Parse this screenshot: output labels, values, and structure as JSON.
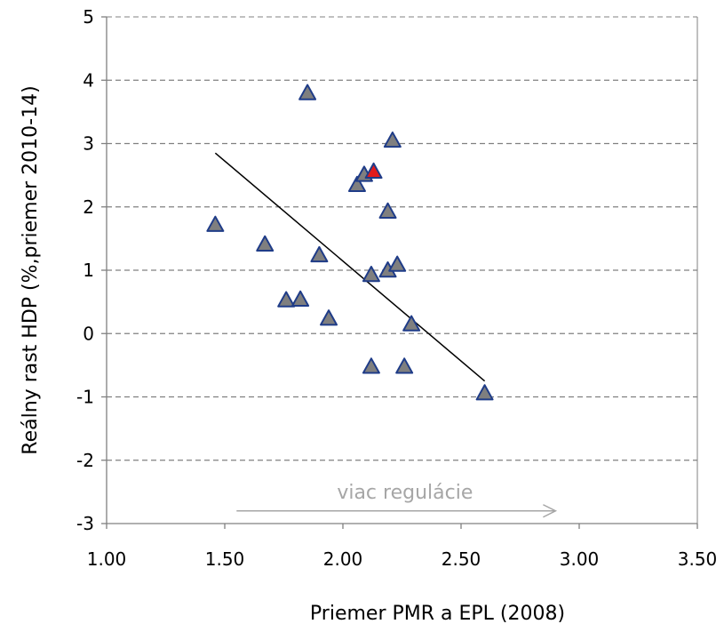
{
  "chart_data": {
    "type": "scatter",
    "title": "",
    "xlabel": "Priemer PMR a EPL (2008)",
    "ylabel": "Reálny rast HDP (%,priemer 2010-14)",
    "xlim": [
      1.0,
      3.5
    ],
    "ylim": [
      -3,
      5
    ],
    "x_ticks": [
      "1.00",
      "1.50",
      "2.00",
      "2.50",
      "3.00",
      "3.50"
    ],
    "y_ticks": [
      "5",
      "4",
      "3",
      "2",
      "1",
      "0",
      "-1",
      "-2",
      "-3"
    ],
    "grid": "horizontal dashed",
    "marker": "triangle",
    "colors": {
      "marker_fill": "#7f7f7f",
      "marker_stroke": "#1f3c88",
      "highlight_fill": "#e31a1c",
      "trend": "#000000",
      "annotation": "#a6a6a6",
      "grid": "#808080"
    },
    "points": [
      {
        "x": 1.46,
        "y": 1.72
      },
      {
        "x": 1.67,
        "y": 1.41
      },
      {
        "x": 1.76,
        "y": 0.53
      },
      {
        "x": 1.82,
        "y": 0.54
      },
      {
        "x": 1.85,
        "y": 3.8
      },
      {
        "x": 1.9,
        "y": 1.24
      },
      {
        "x": 1.94,
        "y": 0.24
      },
      {
        "x": 2.06,
        "y": 2.35
      },
      {
        "x": 2.09,
        "y": 2.51
      },
      {
        "x": 2.12,
        "y": 0.93
      },
      {
        "x": 2.12,
        "y": -0.52
      },
      {
        "x": 2.19,
        "y": 1.93
      },
      {
        "x": 2.19,
        "y": 1.0
      },
      {
        "x": 2.21,
        "y": 3.05
      },
      {
        "x": 2.23,
        "y": 1.09
      },
      {
        "x": 2.26,
        "y": -0.52
      },
      {
        "x": 2.29,
        "y": 0.15
      },
      {
        "x": 2.6,
        "y": -0.94
      }
    ],
    "highlighted_points": [
      {
        "x": 2.13,
        "y": 2.56
      }
    ],
    "trendline": [
      {
        "x": 1.46,
        "y": 2.85
      },
      {
        "x": 2.6,
        "y": -0.75
      }
    ],
    "annotation": {
      "text": "viac regulácie",
      "arrow_from": {
        "x": 1.55,
        "y": -2.8
      },
      "arrow_to": {
        "x": 2.9,
        "y": -2.8
      }
    }
  }
}
